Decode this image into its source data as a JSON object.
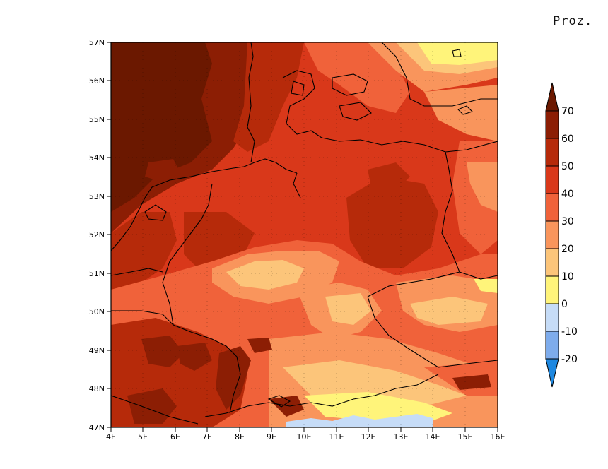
{
  "unit_label": "Proz.",
  "map": {
    "lat_labels": [
      "57N",
      "56N",
      "55N",
      "54N",
      "53N",
      "52N",
      "51N",
      "50N",
      "49N",
      "48N",
      "47N"
    ],
    "lon_labels": [
      "4E",
      "5E",
      "6E",
      "7E",
      "8E",
      "9E",
      "10E",
      "11E",
      "12E",
      "13E",
      "14E",
      "15E",
      "16E"
    ],
    "lat_range": [
      47,
      57
    ],
    "lon_range": [
      4,
      16
    ]
  },
  "colorbar": {
    "levels": [
      "70",
      "60",
      "50",
      "40",
      "30",
      "20",
      "10",
      "0",
      "-10",
      "-20"
    ],
    "colors": {
      "gt70": "#6b1800",
      "60_70": "#8c1e04",
      "50_60": "#b62a0a",
      "40_50": "#d9381a",
      "30_40": "#f0623a",
      "20_30": "#f9955c",
      "10_20": "#fcc57a",
      "0_10": "#fff47a",
      "m10_0": "#c6dcf7",
      "m20_m10": "#7eacec",
      "lt_m20": "#1e88e0"
    }
  }
}
